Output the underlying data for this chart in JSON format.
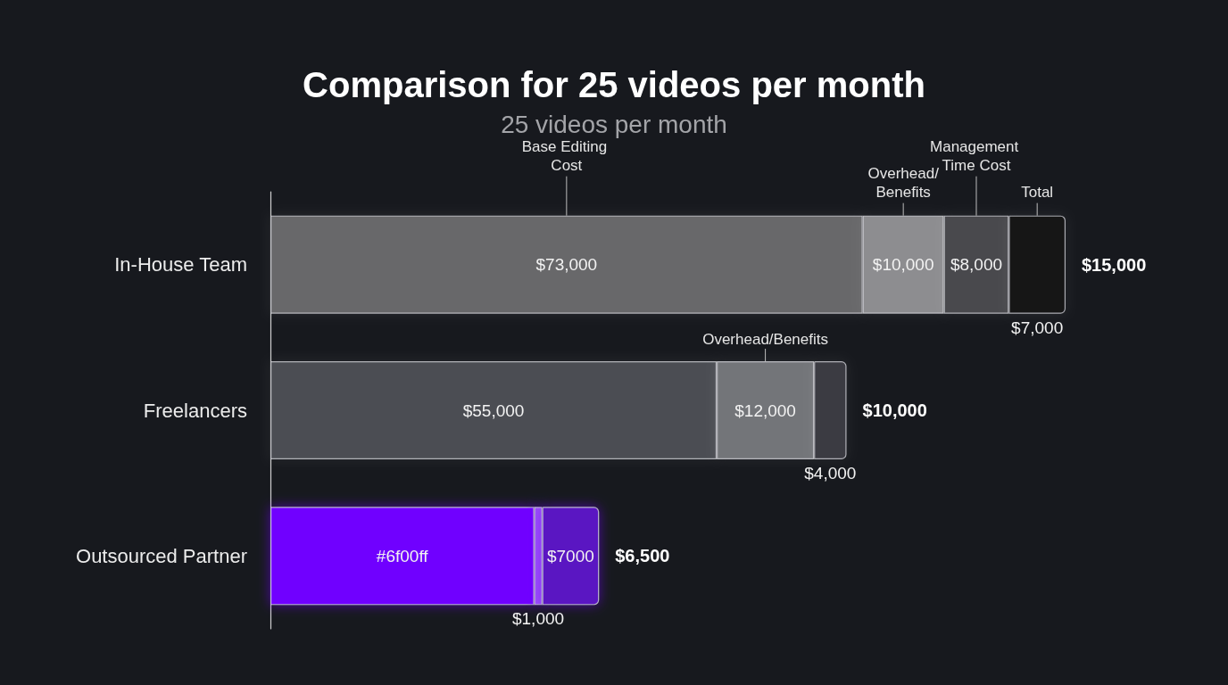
{
  "chart_data": {
    "type": "bar",
    "orientation": "horizontal",
    "stacked": true,
    "title": "Comparison for 25 videos per month",
    "subtitle": "25 videos per month",
    "categories": [
      "In-House Team",
      "Freelancers",
      "Outsourced Partner"
    ],
    "series": [
      {
        "name": "Base Editing Cost",
        "colors": [
          "#68686b",
          "#4b4d53",
          "#6f00ff"
        ],
        "values": [
          73000,
          55000,
          32500
        ],
        "value_labels": [
          "$73,000",
          "$55,000",
          "#6f00ff"
        ]
      },
      {
        "name": "Overhead/Benefits",
        "colors": [
          "#8d8d90",
          "#737479",
          "#9a50f7"
        ],
        "values": [
          10000,
          12000,
          1000
        ],
        "value_labels": [
          "$10,000",
          "$12,000",
          "$1,000"
        ]
      },
      {
        "name": "Management Time Cost",
        "colors": [
          "#48494d",
          "#3a3a42",
          "#5a12c2"
        ],
        "values": [
          8000,
          4000,
          7000
        ],
        "value_labels": [
          "$8,000",
          "$4,000",
          "$7000"
        ]
      },
      {
        "name": "Total",
        "colors": [
          "#131418",
          null,
          null
        ],
        "values": [
          7000,
          null,
          null
        ],
        "value_labels": [
          "$7,000",
          null,
          null
        ]
      }
    ],
    "annotations": [
      "Overhead/Benefits",
      {
        "text": "$15,000",
        "x": 98000,
        "y": "In-House Team"
      },
      {
        "text": "$10,000",
        "x": 71000,
        "y": "Freelancers"
      },
      {
        "text": "$6,500",
        "x": 40500,
        "y": "Outsourced Partner"
      }
    ],
    "grid": false,
    "tick_labels": "y",
    "legend": false
  }
}
